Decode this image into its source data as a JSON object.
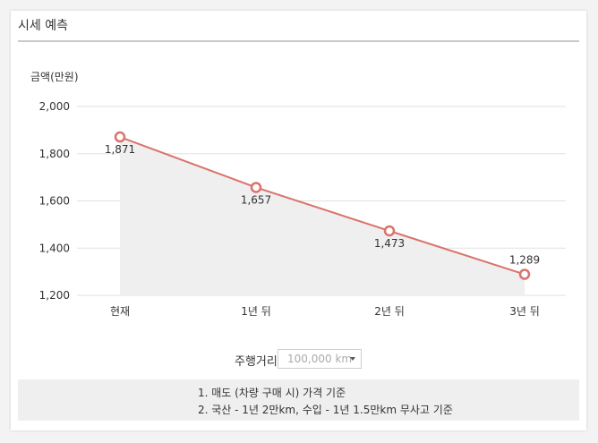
{
  "panel": {
    "title": "시세 예측"
  },
  "mileage": {
    "label": "주행거리",
    "selected": "100,000 km"
  },
  "notes": [
    "1. 매도 (차량 구매 시) 가격 기준",
    "2. 국산 - 1년 2만km, 수입 - 1년 1.5만km 무사고 기준"
  ],
  "colors": {
    "line": "#d9736c",
    "area": "#efefef",
    "grid": "#e2e2e2"
  },
  "chart_data": {
    "type": "line",
    "title": "",
    "ylabel": "금액(만원)",
    "xlabel": "",
    "categories": [
      "현재",
      "1년 뒤",
      "2년 뒤",
      "3년 뒤"
    ],
    "values": [
      1871,
      1657,
      1473,
      1289
    ],
    "value_labels": [
      "1,871",
      "1,657",
      "1,473",
      "1,289"
    ],
    "y_ticks": [
      2000,
      1800,
      1600,
      1400,
      1200
    ],
    "y_tick_labels": [
      "2,000",
      "1,800",
      "1,600",
      "1,400",
      "1,200"
    ],
    "ylim": [
      1200,
      2000
    ],
    "grid": true,
    "area_fill": true
  }
}
